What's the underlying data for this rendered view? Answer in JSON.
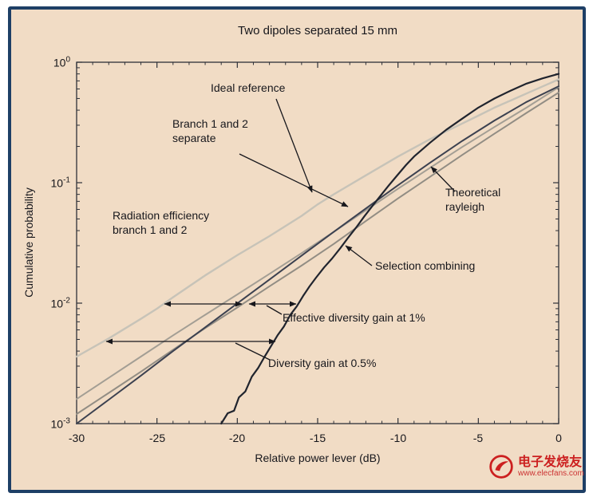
{
  "watermark": {
    "brand": "电子发烧友",
    "url": "www.elecfans.com"
  },
  "chart_data": {
    "type": "line",
    "title": "Two dipoles separated 15 mm",
    "xlabel": "Relative power lever (dB)",
    "ylabel": "Cumulative probability",
    "xlim": [
      -30,
      0
    ],
    "ylim": [
      0.001,
      1
    ],
    "y_scale": "log",
    "grid": false,
    "legend_position": "none",
    "x_tick_labels": [
      "-30",
      "-25",
      "-20",
      "-15",
      "-10",
      "-5",
      "0"
    ],
    "y_ticks": [
      {
        "mantissa": "10",
        "exponent": "0"
      },
      {
        "mantissa": "10",
        "exponent": "-1"
      },
      {
        "mantissa": "10",
        "exponent": "-2"
      },
      {
        "mantissa": "10",
        "exponent": "-3"
      }
    ],
    "series": [
      {
        "name": "Ideal reference",
        "color": "#c7c3b8",
        "width": 2.4,
        "points": [
          [
            -30,
            0.0036
          ],
          [
            -28,
            0.0051
          ],
          [
            -26,
            0.0074
          ],
          [
            -25,
            0.009
          ],
          [
            -24,
            0.0112
          ],
          [
            -22,
            0.017
          ],
          [
            -20,
            0.025
          ],
          [
            -18,
            0.036
          ],
          [
            -16,
            0.053
          ],
          [
            -15,
            0.066
          ],
          [
            -14,
            0.08
          ],
          [
            -12,
            0.115
          ],
          [
            -10,
            0.165
          ],
          [
            -8,
            0.23
          ],
          [
            -6,
            0.31
          ],
          [
            -5,
            0.36
          ],
          [
            -4,
            0.42
          ],
          [
            -3,
            0.48
          ],
          [
            -2,
            0.55
          ],
          [
            -1,
            0.63
          ],
          [
            0,
            0.72
          ]
        ]
      },
      {
        "name": "Branch 1 separate",
        "color": "#928d84",
        "width": 2,
        "points": [
          [
            -30,
            0.0012
          ],
          [
            -28,
            0.0018
          ],
          [
            -26,
            0.0027
          ],
          [
            -24,
            0.0041
          ],
          [
            -22,
            0.0062
          ],
          [
            -20,
            0.0092
          ],
          [
            -18,
            0.0138
          ],
          [
            -16,
            0.0205
          ],
          [
            -14,
            0.031
          ],
          [
            -12,
            0.048
          ],
          [
            -10,
            0.074
          ],
          [
            -8,
            0.112
          ],
          [
            -6,
            0.17
          ],
          [
            -4,
            0.255
          ],
          [
            -2,
            0.38
          ],
          [
            0,
            0.56
          ]
        ]
      },
      {
        "name": "Branch 2 separate",
        "color": "#a39e94",
        "width": 2,
        "points": [
          [
            -30,
            0.0016
          ],
          [
            -28,
            0.0024
          ],
          [
            -26,
            0.0036
          ],
          [
            -24,
            0.0054
          ],
          [
            -22,
            0.008
          ],
          [
            -20,
            0.0118
          ],
          [
            -18,
            0.0175
          ],
          [
            -16,
            0.026
          ],
          [
            -14,
            0.039
          ],
          [
            -12,
            0.059
          ],
          [
            -10,
            0.089
          ],
          [
            -8,
            0.133
          ],
          [
            -6,
            0.198
          ],
          [
            -4,
            0.29
          ],
          [
            -2,
            0.42
          ],
          [
            0,
            0.62
          ]
        ]
      },
      {
        "name": "Theoretical rayleigh",
        "color": "#3c4150",
        "width": 2,
        "points": [
          [
            -30,
            0.001
          ],
          [
            -28,
            0.00158
          ],
          [
            -26,
            0.0025
          ],
          [
            -24,
            0.004
          ],
          [
            -22,
            0.0063
          ],
          [
            -20,
            0.00995
          ],
          [
            -18,
            0.0157
          ],
          [
            -16,
            0.0248
          ],
          [
            -14,
            0.039
          ],
          [
            -12,
            0.0611
          ],
          [
            -10,
            0.0952
          ],
          [
            -8,
            0.1466
          ],
          [
            -6,
            0.2223
          ],
          [
            -4,
            0.328
          ],
          [
            -2,
            0.4677
          ],
          [
            0,
            0.6321
          ]
        ]
      },
      {
        "name": "Selection combining",
        "color": "#20242e",
        "width": 2.2,
        "points": [
          [
            -21,
            0.001
          ],
          [
            -20.6,
            0.00122
          ],
          [
            -20.2,
            0.00128
          ],
          [
            -19.9,
            0.00165
          ],
          [
            -19.5,
            0.00185
          ],
          [
            -19.1,
            0.00245
          ],
          [
            -18.7,
            0.0029
          ],
          [
            -18.3,
            0.0036
          ],
          [
            -17.9,
            0.0044
          ],
          [
            -17.5,
            0.0054
          ],
          [
            -17.1,
            0.0064
          ],
          [
            -16.7,
            0.008
          ],
          [
            -16.3,
            0.0094
          ],
          [
            -15.9,
            0.0115
          ],
          [
            -15.5,
            0.0138
          ],
          [
            -15.1,
            0.0163
          ],
          [
            -14.6,
            0.0198
          ],
          [
            -14.1,
            0.0235
          ],
          [
            -13.6,
            0.0285
          ],
          [
            -13.1,
            0.035
          ],
          [
            -12.6,
            0.0425
          ],
          [
            -12.1,
            0.0525
          ],
          [
            -11.6,
            0.064
          ],
          [
            -11.1,
            0.0775
          ],
          [
            -10.6,
            0.094
          ],
          [
            -10.1,
            0.113
          ],
          [
            -9.5,
            0.14
          ],
          [
            -9,
            0.165
          ],
          [
            -8,
            0.215
          ],
          [
            -7,
            0.275
          ],
          [
            -6,
            0.34
          ],
          [
            -5,
            0.42
          ],
          [
            -4,
            0.5
          ],
          [
            -3,
            0.58
          ],
          [
            -2,
            0.665
          ],
          [
            -1,
            0.735
          ],
          [
            0,
            0.8
          ]
        ]
      }
    ],
    "annotations": [
      {
        "text": "Ideal reference"
      },
      {
        "text": "Branch 1 and 2\nseparate"
      },
      {
        "text": "Radiation efficiency\nbranch 1 and 2"
      },
      {
        "text": "Effective diversity gain at 1%"
      },
      {
        "text": "Diversity gain at 0.5%"
      },
      {
        "text": "Theoretical\nrayleigh"
      },
      {
        "text": "Selection combining"
      }
    ]
  }
}
